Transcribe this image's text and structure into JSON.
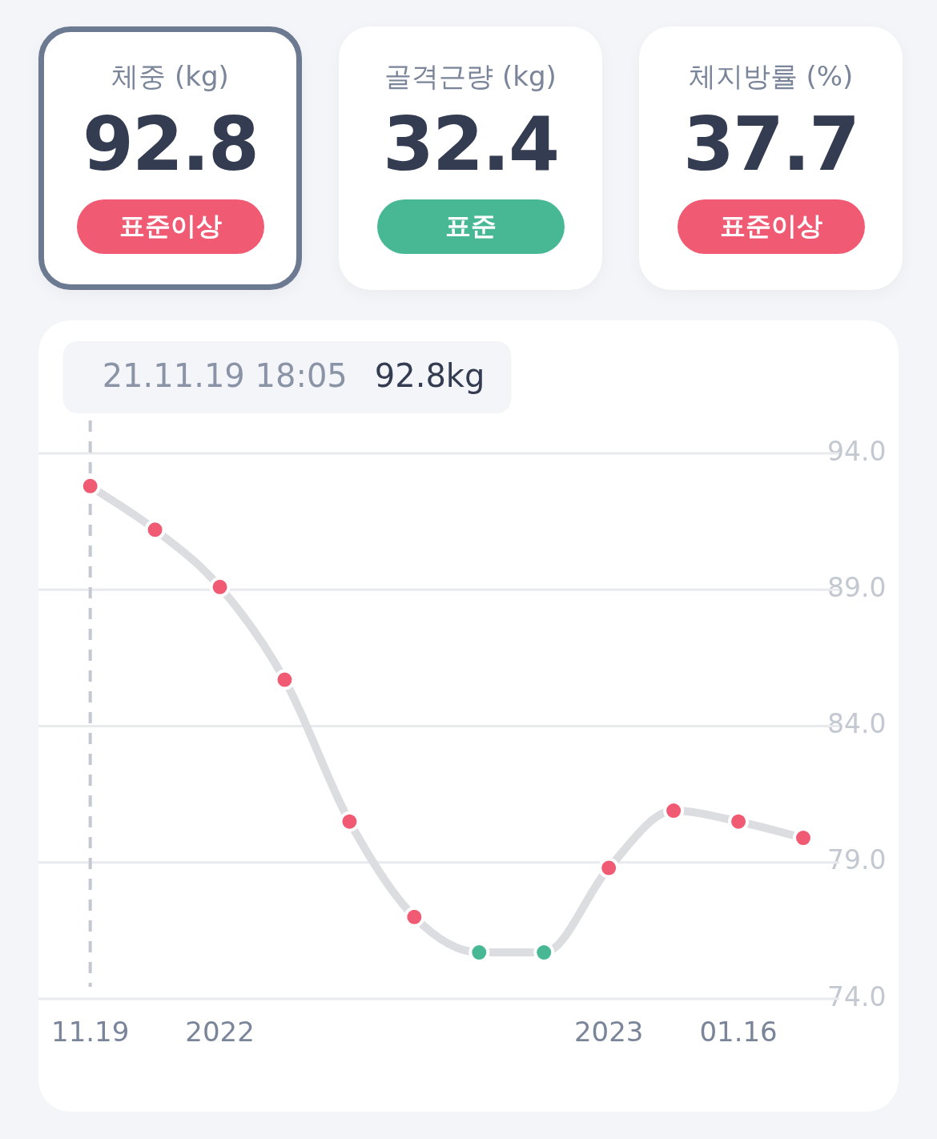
{
  "chart_data": [
    {
      "type": "other",
      "categories": [
        "체중 (kg)",
        "골격근량 (kg)",
        "체지방률 (%)"
      ],
      "values": [
        92.8,
        32.4,
        37.7
      ],
      "annotations": [
        "표준이상",
        "표준",
        "표준이상"
      ],
      "data_labels": true
    },
    {
      "type": "line",
      "categories": [
        "11.19",
        null,
        "2022",
        null,
        null,
        null,
        null,
        null,
        "2023",
        null,
        "01.16",
        null
      ],
      "series": [
        {
          "color": "#dcdde1",
          "colors": [
            "#f05a72",
            "#f05a72",
            "#f05a72",
            "#f05a72",
            "#f05a72",
            "#f05a72",
            "#48b894",
            "#48b894",
            "#f05a72",
            "#f05a72",
            "#f05a72",
            "#f05a72"
          ],
          "values": [
            92.8,
            91.2,
            89.1,
            85.7,
            80.5,
            77.0,
            75.7,
            75.7,
            78.8,
            80.9,
            80.5,
            79.9
          ]
        }
      ],
      "ylim": [
        74,
        94
      ],
      "yticks": [
        {
          "value": 74,
          "label": "74.0"
        },
        {
          "value": 79,
          "label": "79.0"
        },
        {
          "value": 84,
          "label": "84.0"
        },
        {
          "value": 89,
          "label": "89.0"
        },
        {
          "value": 94,
          "label": "94.0"
        }
      ],
      "grid": "y",
      "marker": "circle",
      "line_style": "solid",
      "ref_lines": [
        {
          "axis": "x",
          "value": "11.19",
          "line_style": "dashed",
          "color": "#c3c8d1"
        }
      ],
      "annotations": [
        "21.11.19 18:05",
        "92.8kg"
      ]
    }
  ]
}
